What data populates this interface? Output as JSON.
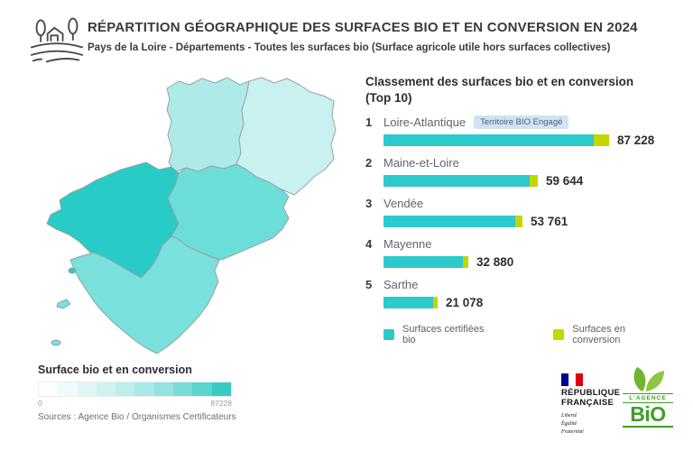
{
  "header": {
    "title": "RÉPARTITION GÉOGRAPHIQUE DES SURFACES BIO ET EN CONVERSION EN 2024",
    "subtitle": "Pays de la Loire - Départements - Toutes les surfaces bio (Surface agricole utile hors surfaces collectives)"
  },
  "colors": {
    "bio": "#2cc9cd",
    "conversion": "#c3d600",
    "badge-bg": "#cfe4f0",
    "badge-text": "#4a6472",
    "map-stroke": "#9aa2a8"
  },
  "map": {
    "departments": [
      {
        "name": "Mayenne",
        "value": 32880,
        "color": "#aeebe8"
      },
      {
        "name": "Sarthe",
        "value": 21078,
        "color": "#c9f1ef"
      },
      {
        "name": "Loire-Atlantique",
        "value": 87228,
        "color": "#28cbc5"
      },
      {
        "name": "Maine-et-Loire",
        "value": 59644,
        "color": "#6cdeda"
      },
      {
        "name": "Vendée",
        "value": 53761,
        "color": "#79e0dc"
      }
    ]
  },
  "ranking": {
    "title": "Classement des surfaces bio et en conversion (Top 10)",
    "max_value": 87228,
    "rows": [
      {
        "rank": "1",
        "name": "Loire-Atlantique",
        "badge": "Territoire BIO Engagé",
        "value": 87228,
        "value_label": "87 228",
        "conversion_share": 0.07
      },
      {
        "rank": "2",
        "name": "Maine-et-Loire",
        "value": 59644,
        "value_label": "59 644",
        "conversion_share": 0.055
      },
      {
        "rank": "3",
        "name": "Vendée",
        "value": 53761,
        "value_label": "53 761",
        "conversion_share": 0.05
      },
      {
        "rank": "4",
        "name": "Mayenne",
        "value": 32880,
        "value_label": "32 880",
        "conversion_share": 0.06
      },
      {
        "rank": "5",
        "name": "Sarthe",
        "value": 21078,
        "value_label": "21 078",
        "conversion_share": 0.09
      }
    ],
    "legend": [
      {
        "label": "Surfaces certifiées bio",
        "color": "#2cc9cd"
      },
      {
        "label": "Surfaces en conversion",
        "color": "#c3d600"
      }
    ]
  },
  "scale_legend": {
    "title": "Surface bio et en conversion",
    "min_label": "0",
    "max_label": "87228",
    "steps": [
      "#ffffff",
      "#f0fbfb",
      "#e0f7f6",
      "#cff2f1",
      "#bdeeec",
      "#a9e9e6",
      "#93e3df",
      "#7adcd7",
      "#5cd4cf",
      "#38cbc5"
    ]
  },
  "sources": "Sources : Agence Bio / Organismes Certificateurs",
  "footer_logos": {
    "republique": {
      "line1": "RÉPUBLIQUE",
      "line2": "FRANÇAISE",
      "motto": [
        "Liberté",
        "Égalité",
        "Fraternité"
      ],
      "flag_colors": [
        "#000091",
        "#ffffff",
        "#e1000f"
      ]
    },
    "agence_bio": {
      "top": "L'AGENCE",
      "main": "BiO"
    }
  },
  "chart_data": [
    {
      "type": "bar",
      "orientation": "horizontal",
      "title": "Classement des surfaces bio et en conversion (Top 10)",
      "categories": [
        "Loire-Atlantique",
        "Maine-et-Loire",
        "Vendée",
        "Mayenne",
        "Sarthe"
      ],
      "values": [
        87228,
        59644,
        53761,
        32880,
        21078
      ],
      "legend": [
        "Surfaces certifiées bio",
        "Surfaces en conversion"
      ],
      "legend_position": "bottom",
      "xlim": [
        0,
        87228
      ],
      "annotations": [
        "Territoire BIO Engagé (Loire-Atlantique)"
      ],
      "notes": "Each bar is stacked: teal = certified organic surface, small yellow-green tip = surface in conversion (split not labelled numerically)."
    },
    {
      "type": "heatmap",
      "subtype": "choropleth-map",
      "title": "Surface bio et en conversion",
      "regions": [
        "Loire-Atlantique",
        "Maine-et-Loire",
        "Vendée",
        "Mayenne",
        "Sarthe"
      ],
      "values": [
        87228,
        59644,
        53761,
        32880,
        21078
      ],
      "colorscale": [
        "#ffffff",
        "#38cbc5"
      ],
      "range": [
        0,
        87228
      ]
    }
  ]
}
